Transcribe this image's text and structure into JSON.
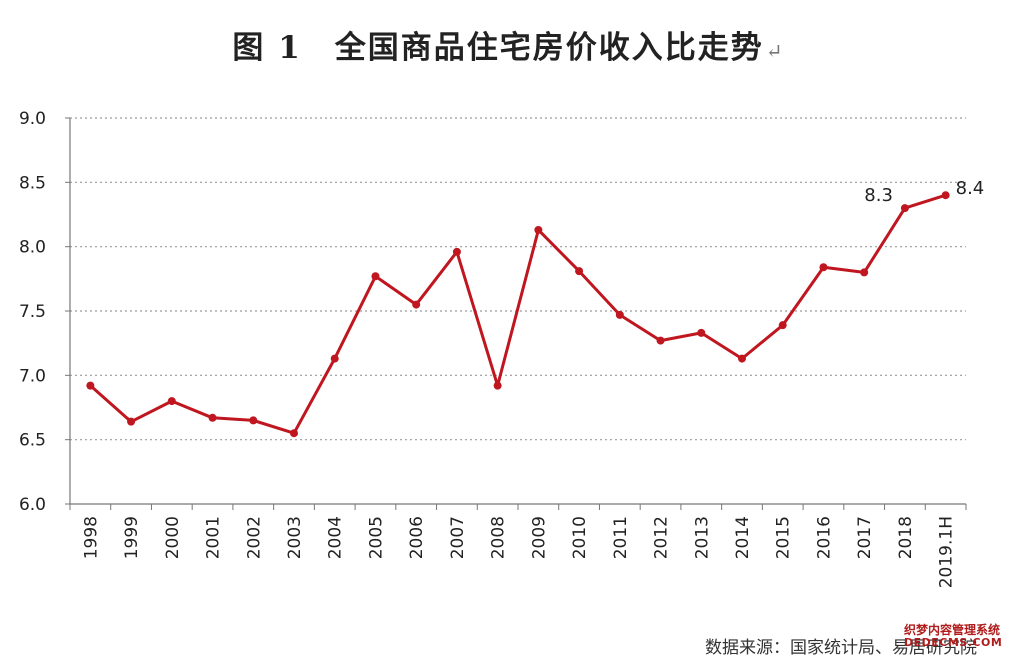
{
  "title": "图 1　全国商品住宅房价收入比走势",
  "title_mark": "↵",
  "source": "数据来源：国家统计局、易居研究院",
  "watermark": {
    "line1": "织梦内容管理系统",
    "line2": "DEDECMS.COM"
  },
  "colors": {
    "line": "#c0161f",
    "grid": "#9a9a9a",
    "axis": "#777777"
  },
  "chart_data": {
    "type": "line",
    "title": "图 1　全国商品住宅房价收入比走势",
    "xlabel": "",
    "ylabel": "",
    "categories": [
      "1998",
      "1999",
      "2000",
      "2001",
      "2002",
      "2003",
      "2004",
      "2005",
      "2006",
      "2007",
      "2008",
      "2009",
      "2010",
      "2011",
      "2012",
      "2013",
      "2014",
      "2015",
      "2016",
      "2017",
      "2018",
      "2019.1H"
    ],
    "series": [
      {
        "values": [
          6.92,
          6.64,
          6.8,
          6.67,
          6.65,
          6.55,
          7.13,
          7.77,
          7.55,
          7.96,
          6.92,
          8.13,
          7.81,
          7.47,
          7.27,
          7.33,
          7.13,
          7.39,
          7.84,
          7.8,
          8.3,
          8.4
        ]
      }
    ],
    "data_labels": [
      {
        "index": 20,
        "text": "8.3"
      },
      {
        "index": 21,
        "text": "8.4"
      }
    ],
    "ylim": [
      6.0,
      9.0
    ],
    "yticks": [
      "6.0",
      "6.5",
      "7.0",
      "7.5",
      "8.0",
      "8.5",
      "9.0"
    ],
    "grid": true,
    "legend": "none"
  }
}
